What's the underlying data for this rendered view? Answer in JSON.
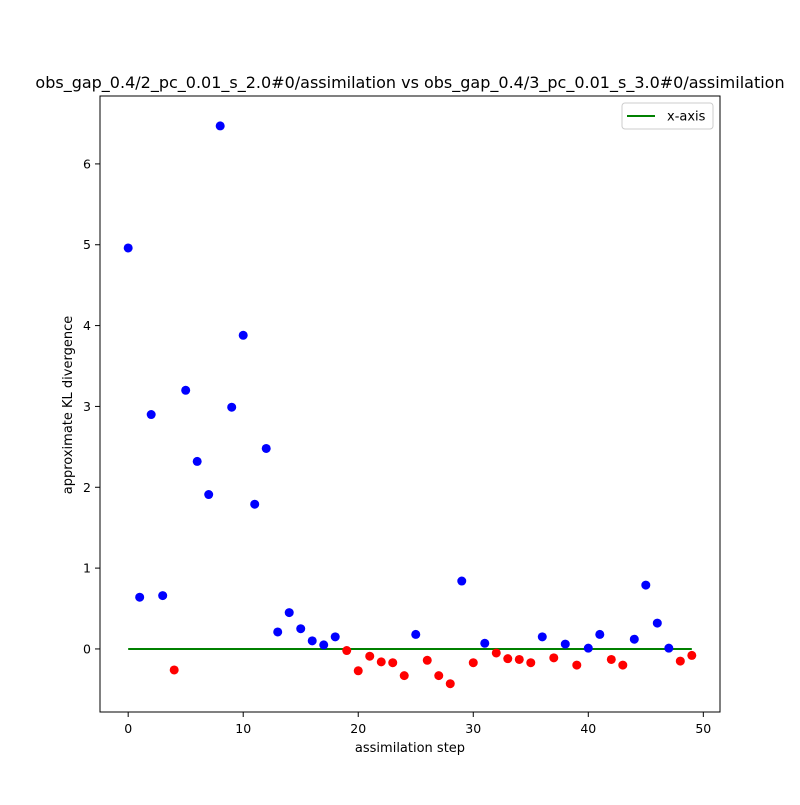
{
  "chart_data": {
    "type": "scatter",
    "title": "obs_gap_0.4/2_pc_0.01_s_2.0#0/assimilation vs obs_gap_0.4/3_pc_0.01_s_3.0#0/assimilation",
    "xlabel": "assimilation step",
    "ylabel": "approximate KL divergence",
    "xlim": [
      -2.45,
      51.45
    ],
    "ylim": [
      -0.78,
      6.84
    ],
    "xticks": [
      0,
      10,
      20,
      30,
      40,
      50
    ],
    "yticks": [
      0,
      1,
      2,
      3,
      4,
      5,
      6
    ],
    "xtick_labels": [
      "0",
      "10",
      "20",
      "30",
      "40",
      "50"
    ],
    "ytick_labels": [
      "0",
      "1",
      "2",
      "3",
      "4",
      "5",
      "6"
    ],
    "grid": false,
    "legend": {
      "position": "top-right",
      "entries": [
        "x-axis"
      ]
    },
    "colors": {
      "positive": "#0000ff",
      "negative": "#ff0000",
      "baseline": "#008000"
    },
    "baseline": {
      "name": "x-axis",
      "y": 0,
      "x": [
        0,
        49
      ]
    },
    "points": [
      {
        "x": 0,
        "y": 4.96
      },
      {
        "x": 1,
        "y": 0.64
      },
      {
        "x": 2,
        "y": 2.9
      },
      {
        "x": 3,
        "y": 0.66
      },
      {
        "x": 4,
        "y": -0.26
      },
      {
        "x": 5,
        "y": 3.2
      },
      {
        "x": 6,
        "y": 2.32
      },
      {
        "x": 7,
        "y": 1.91
      },
      {
        "x": 8,
        "y": 6.47
      },
      {
        "x": 9,
        "y": 2.99
      },
      {
        "x": 10,
        "y": 3.88
      },
      {
        "x": 11,
        "y": 1.79
      },
      {
        "x": 12,
        "y": 2.48
      },
      {
        "x": 13,
        "y": 0.21
      },
      {
        "x": 14,
        "y": 0.45
      },
      {
        "x": 15,
        "y": 0.25
      },
      {
        "x": 16,
        "y": 0.1
      },
      {
        "x": 17,
        "y": 0.05
      },
      {
        "x": 18,
        "y": 0.15
      },
      {
        "x": 19,
        "y": -0.02
      },
      {
        "x": 20,
        "y": -0.27
      },
      {
        "x": 21,
        "y": -0.09
      },
      {
        "x": 22,
        "y": -0.16
      },
      {
        "x": 23,
        "y": -0.17
      },
      {
        "x": 24,
        "y": -0.33
      },
      {
        "x": 25,
        "y": 0.18
      },
      {
        "x": 26,
        "y": -0.14
      },
      {
        "x": 27,
        "y": -0.33
      },
      {
        "x": 28,
        "y": -0.43
      },
      {
        "x": 29,
        "y": 0.84
      },
      {
        "x": 30,
        "y": -0.17
      },
      {
        "x": 31,
        "y": 0.07
      },
      {
        "x": 32,
        "y": -0.05
      },
      {
        "x": 33,
        "y": -0.12
      },
      {
        "x": 34,
        "y": -0.13
      },
      {
        "x": 35,
        "y": -0.17
      },
      {
        "x": 36,
        "y": 0.15
      },
      {
        "x": 37,
        "y": -0.11
      },
      {
        "x": 38,
        "y": 0.06
      },
      {
        "x": 39,
        "y": -0.2
      },
      {
        "x": 40,
        "y": 0.01
      },
      {
        "x": 41,
        "y": 0.18
      },
      {
        "x": 42,
        "y": -0.13
      },
      {
        "x": 43,
        "y": -0.2
      },
      {
        "x": 44,
        "y": 0.12
      },
      {
        "x": 45,
        "y": 0.79
      },
      {
        "x": 46,
        "y": 0.32
      },
      {
        "x": 47,
        "y": 0.01
      },
      {
        "x": 48,
        "y": -0.15
      },
      {
        "x": 49,
        "y": -0.08
      }
    ]
  }
}
